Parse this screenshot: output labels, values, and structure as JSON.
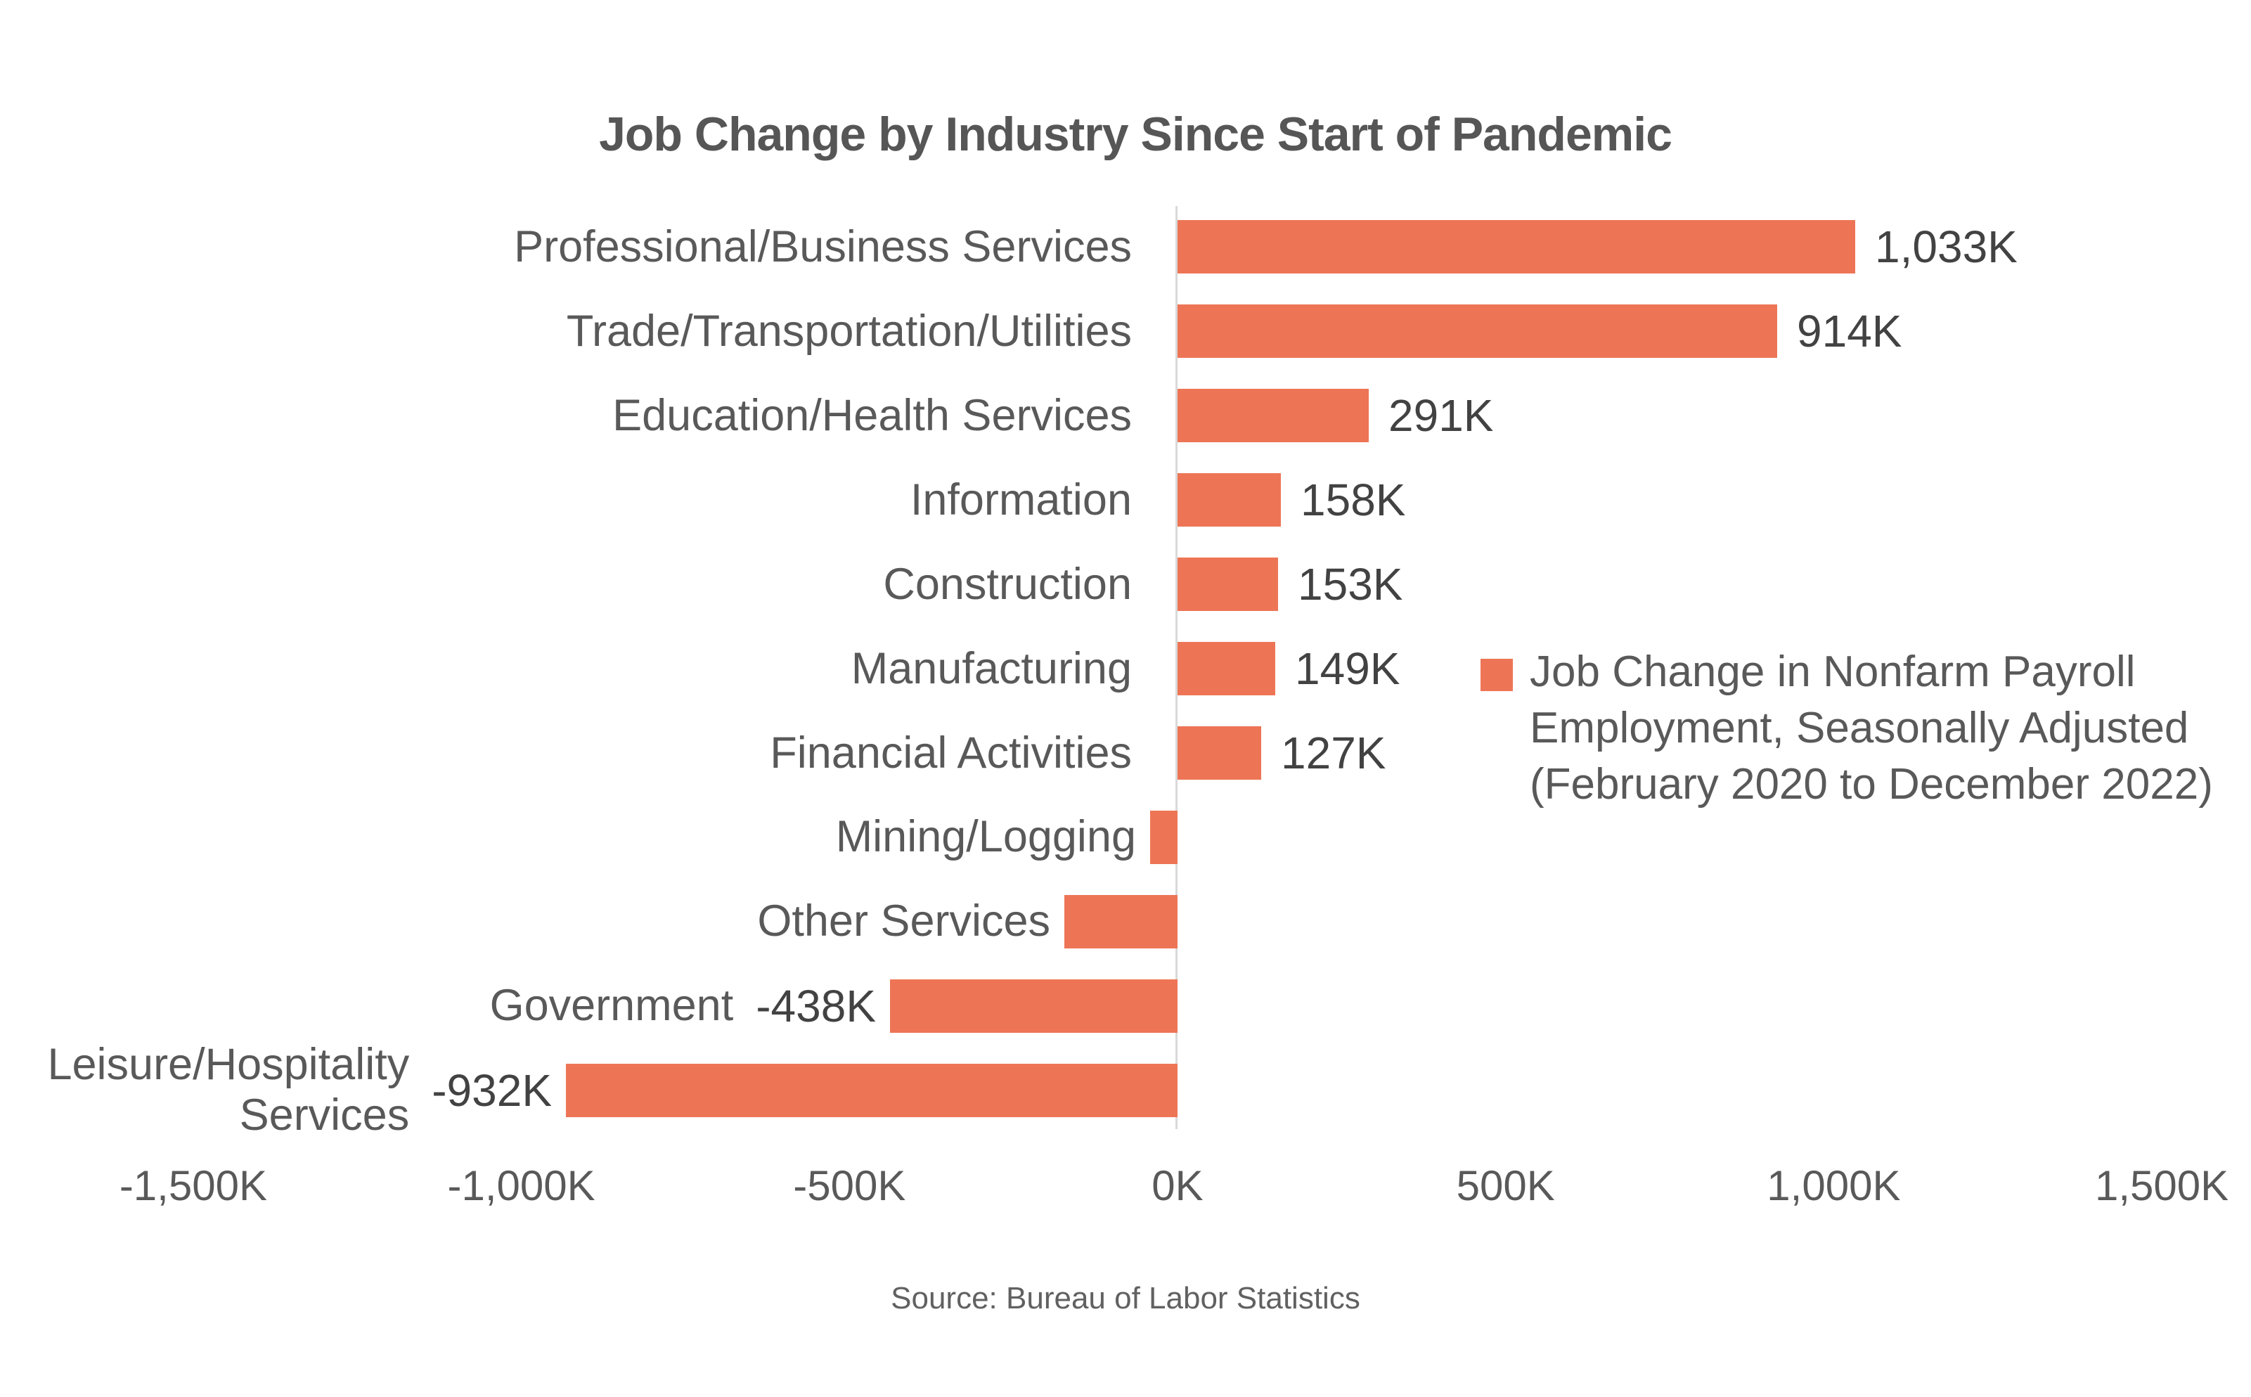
{
  "page": {
    "background_color": "#ffffff",
    "text_color": "#595959"
  },
  "chart_data": {
    "type": "bar",
    "orientation": "horizontal",
    "title": "Job Change by Industry Since Start of Pandemic",
    "categories": [
      "Professional/Business Services",
      "Trade/Transportation/Utilities",
      "Education/Health Services",
      "Information",
      "Construction",
      "Manufacturing",
      "Financial Activities",
      "Mining/Logging",
      "Other Services",
      "Government",
      "Leisure/Hospitality Services"
    ],
    "values": [
      1033,
      914,
      291,
      158,
      153,
      149,
      127,
      -42,
      -172,
      -438,
      -932
    ],
    "value_labels": [
      "1,033K",
      "914K",
      "291K",
      "158K",
      "153K",
      "149K",
      "127K",
      null,
      null,
      "-438K",
      "-932K"
    ],
    "unit": "K",
    "xlim": [
      -1500,
      1500
    ],
    "x_ticks": [
      {
        "label": "-1,500K",
        "value": -1500
      },
      {
        "label": "-1,000K",
        "value": -1000
      },
      {
        "label": "-500K",
        "value": -500
      },
      {
        "label": "0K",
        "value": 0
      },
      {
        "label": "500K",
        "value": 500
      },
      {
        "label": "1,000K",
        "value": 1000
      },
      {
        "label": "1,500K",
        "value": 1500
      }
    ],
    "grid": false,
    "zero_axis_line_color": "#d9d9d9",
    "bar_color": "#ED7556",
    "legend": {
      "label": "Job Change in Nonfarm Payroll Employment, Seasonally Adjusted (February 2020 to December 2022)",
      "marker_color": "#ED7556",
      "position": "middle-right"
    },
    "source": "Source: Bureau of Labor Statistics"
  }
}
